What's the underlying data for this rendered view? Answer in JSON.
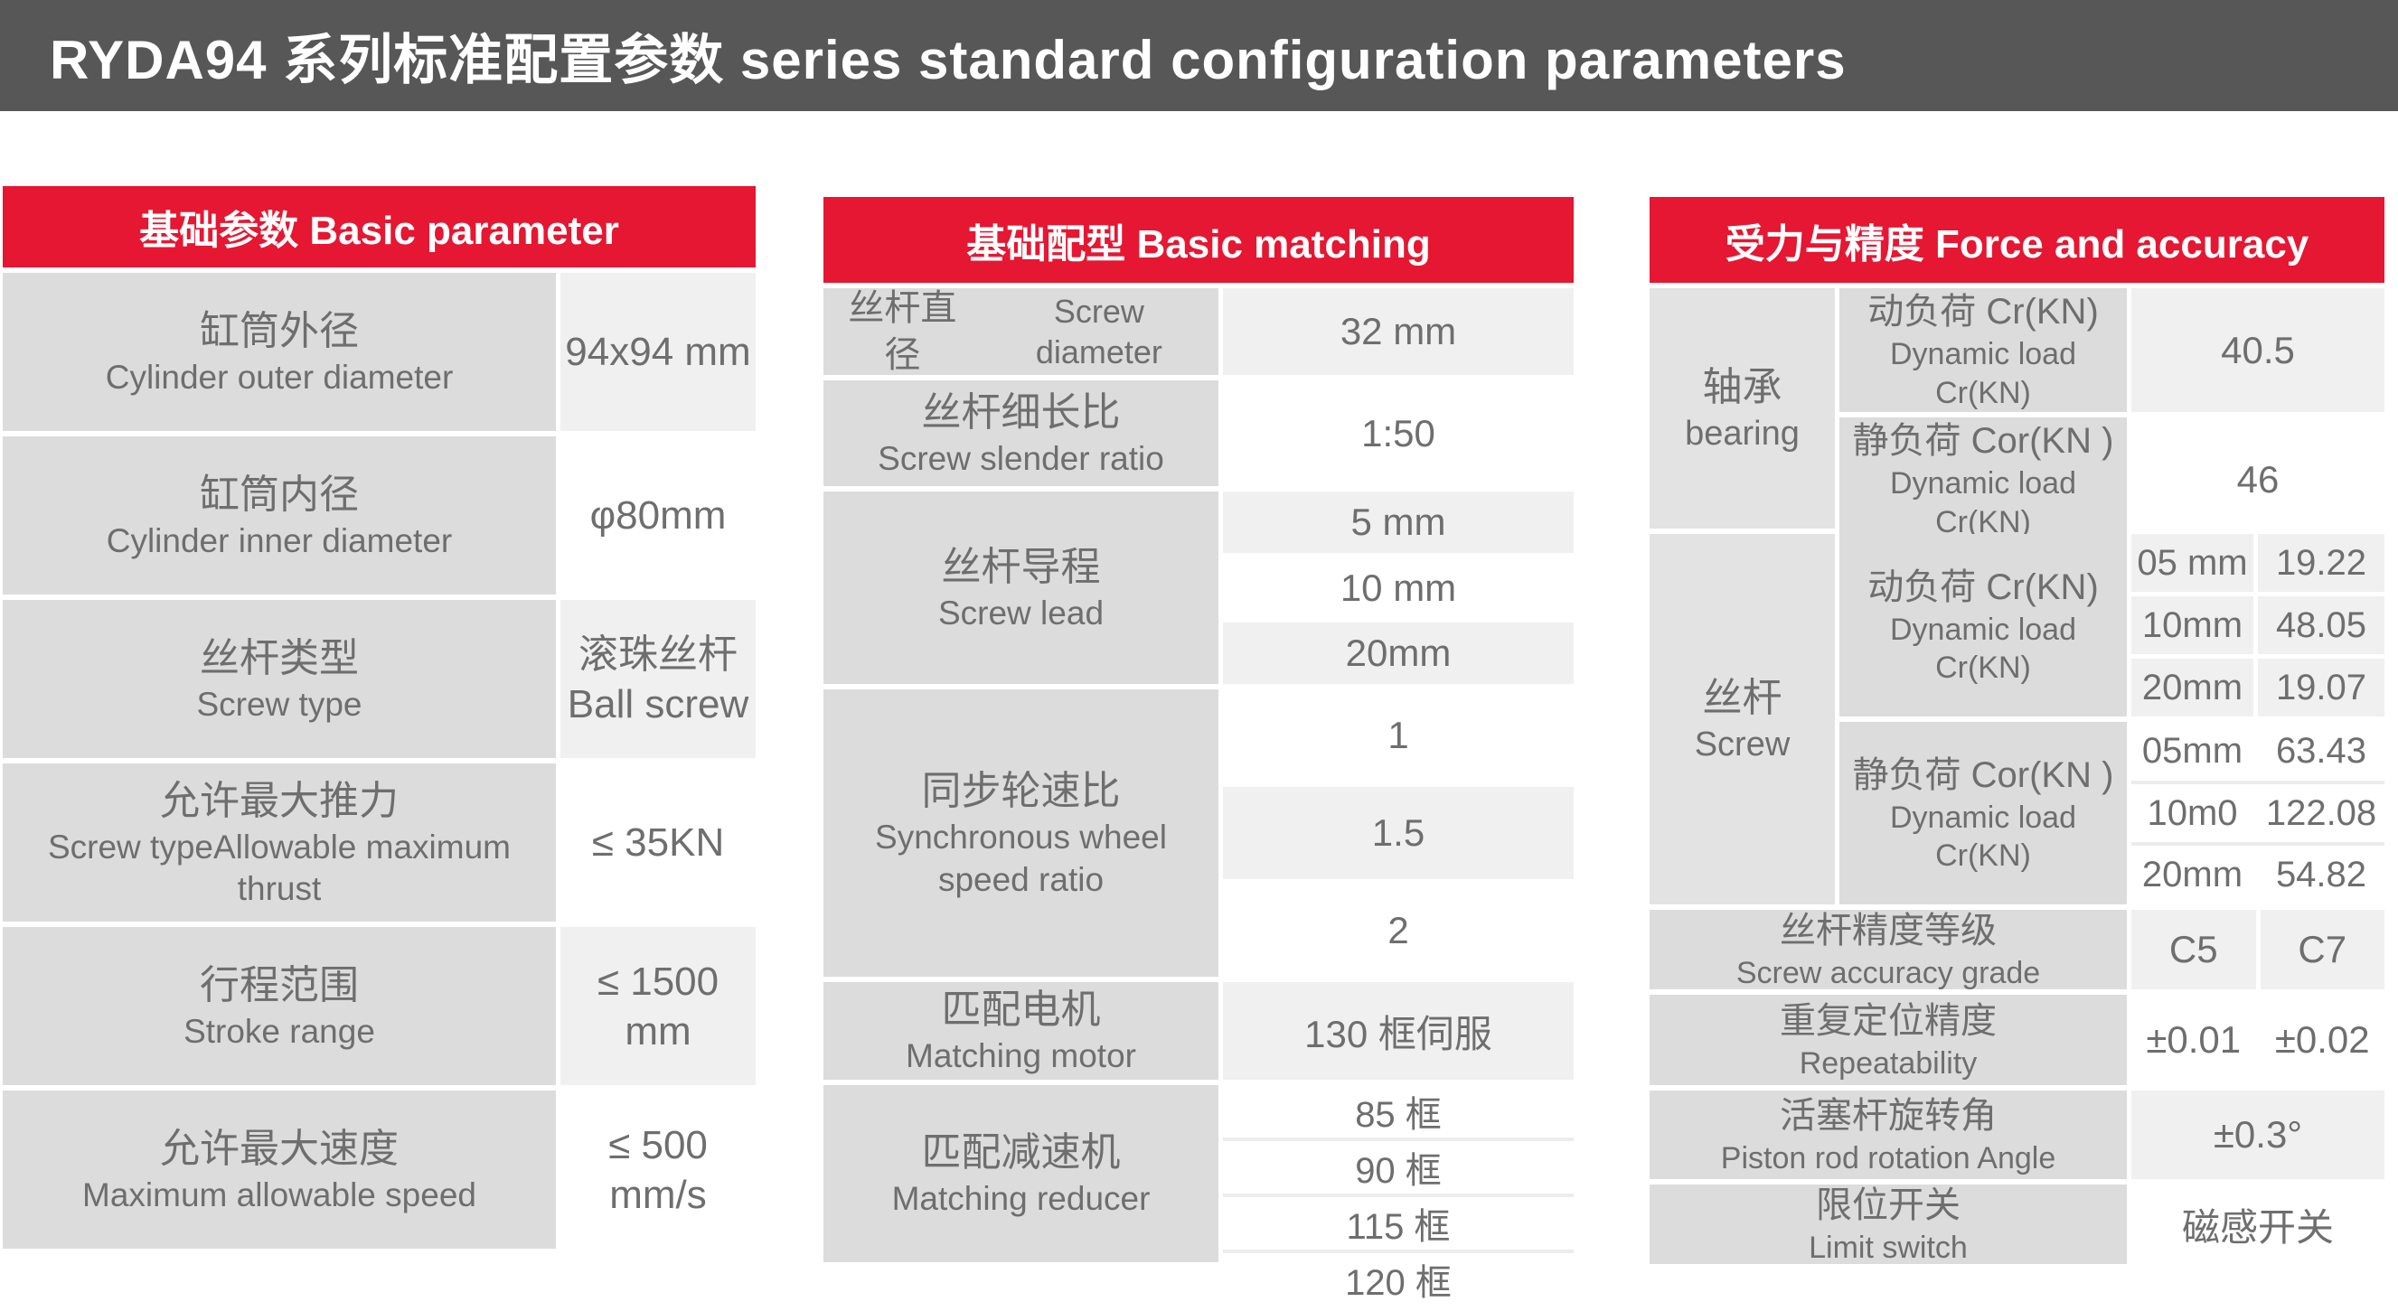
{
  "title": "RYDA94 系列标准配置参数 series standard configuration parameters",
  "colors": {
    "accent_red": "#e51732",
    "titlebar_gray": "#575757",
    "label_gray": "#dcdcdc",
    "group_gray": "#e3e3e3",
    "value_gray": "#f0f0f0",
    "text_gray": "#6e6e6e"
  },
  "table1": {
    "header": "基础参数 Basic parameter",
    "rows": [
      {
        "zh": "缸筒外径",
        "en": "Cylinder outer diameter",
        "v1": "94x94 mm",
        "v2": ""
      },
      {
        "zh": "缸筒内径",
        "en": "Cylinder inner diameter",
        "v1": "φ80mm",
        "v2": ""
      },
      {
        "zh": "丝杆类型",
        "en": "Screw type",
        "v1": "滚珠丝杆",
        "v2": "Ball screw"
      },
      {
        "zh": "允许最大推力",
        "en": "Screw typeAllowable maximum thrust",
        "v1": "≤ 35KN",
        "v2": ""
      },
      {
        "zh": "行程范围",
        "en": "Stroke range",
        "v1": "≤ 1500 mm",
        "v2": ""
      },
      {
        "zh": "允许最大速度",
        "en": "Maximum allowable speed",
        "v1": "≤ 500 mm/s",
        "v2": ""
      }
    ]
  },
  "table2": {
    "header": "基础配型 Basic matching",
    "rows": [
      {
        "zh": "丝杆直径",
        "en": "Screw diameter",
        "value": "32  mm"
      },
      {
        "zh": "丝杆细长比",
        "en": "Screw slender ratio",
        "value": "1:50"
      },
      {
        "zh": "丝杆导程",
        "en": "Screw lead",
        "values": [
          "5 mm",
          "10 mm",
          "20mm"
        ]
      },
      {
        "zh": "同步轮速比",
        "en": "Synchronous wheel speed ratio",
        "values": [
          "1",
          "1.5",
          "2"
        ]
      },
      {
        "zh": "匹配电机",
        "en": "Matching motor",
        "value": "130 框伺服"
      },
      {
        "zh": "匹配减速机",
        "en": "Matching reducer",
        "values": [
          "85 框",
          "90 框",
          "115 框",
          "120 框"
        ]
      }
    ]
  },
  "table3": {
    "header": "受力与精度 Force and accuracy",
    "groups": {
      "bearing": {
        "zh": "轴承",
        "en": "bearing",
        "rows": [
          {
            "zh": "动负荷 Cr(KN)",
            "en": "Dynamic load Cr(KN)",
            "value": "40.5"
          },
          {
            "zh": "静负荷 Cor(KN )",
            "en": "Dynamic load Cr(KN)",
            "value": "46"
          }
        ]
      },
      "screw": {
        "zh": "丝杆",
        "en": "Screw",
        "rows": [
          {
            "zh": "动负荷 Cr(KN)",
            "en": "Dynamic load Cr(KN)",
            "subrows": [
              {
                "size": "05 mm",
                "value": "19.22"
              },
              {
                "size": "10mm",
                "value": "48.05"
              },
              {
                "size": "20mm",
                "value": "19.07"
              }
            ]
          },
          {
            "zh": "静负荷 Cor(KN )",
            "en": "Dynamic load Cr(KN)",
            "subrows": [
              {
                "size": "05mm",
                "value": "63.43"
              },
              {
                "size": "10m0",
                "value": "122.08"
              },
              {
                "size": "20mm",
                "value": "54.82"
              }
            ]
          }
        ]
      }
    },
    "simple_rows": [
      {
        "zh": "丝杆精度等级",
        "en": "Screw accuracy grade",
        "values": [
          "C5",
          "C7"
        ]
      },
      {
        "zh": "重复定位精度",
        "en": "Repeatability",
        "values": [
          "±0.01",
          "±0.02"
        ]
      },
      {
        "zh": "活塞杆旋转角",
        "en": "Piston rod rotation Angle",
        "value": "±0.3°"
      },
      {
        "zh": "限位开关",
        "en": "Limit switch",
        "value": "磁感开关"
      }
    ]
  }
}
